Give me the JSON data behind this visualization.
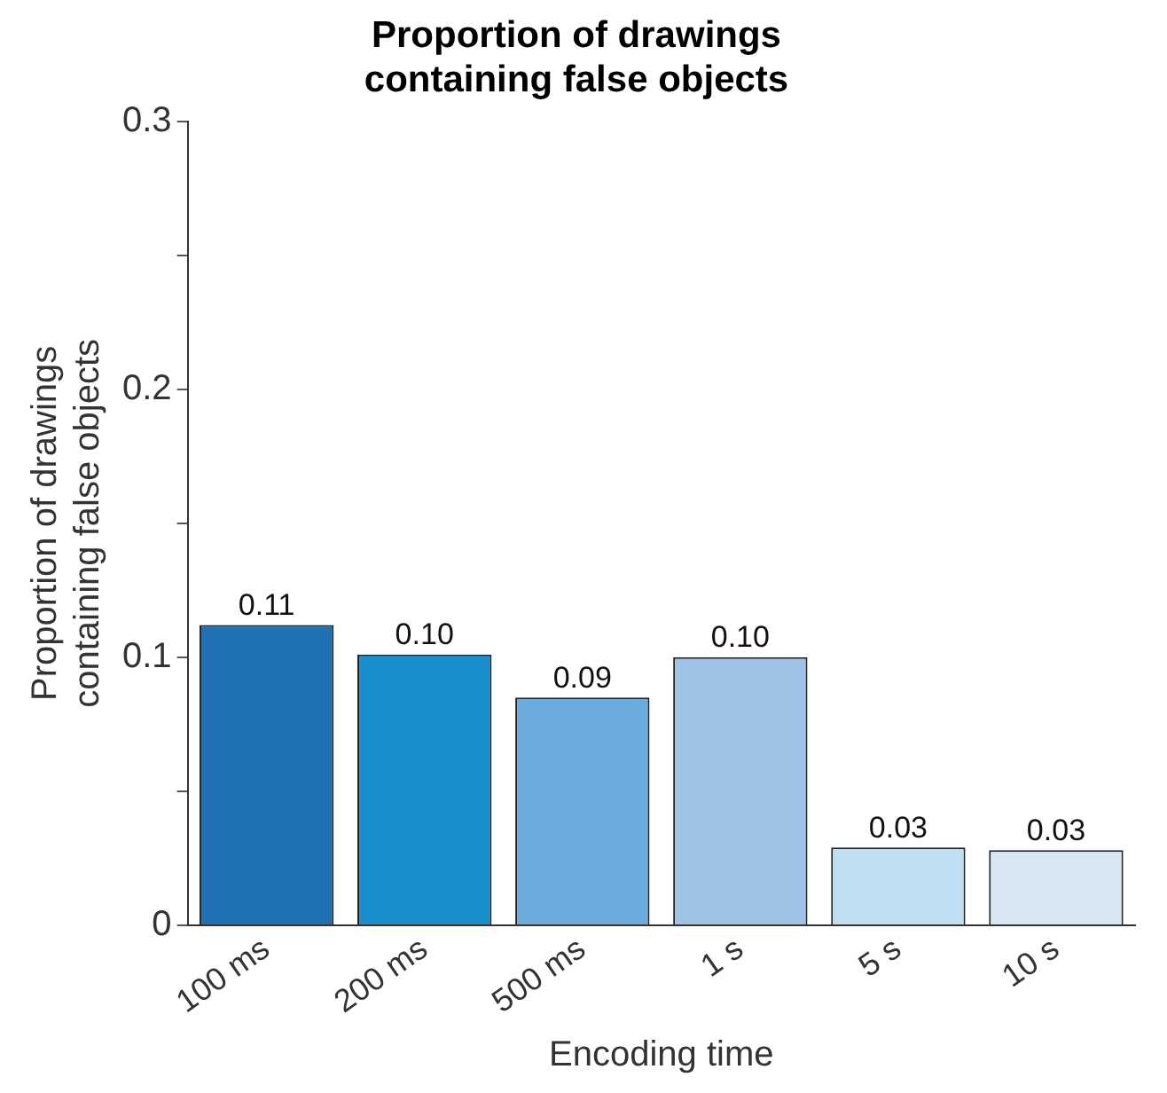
{
  "chart_data": {
    "type": "bar",
    "title": "Proportion of drawings containing false objects",
    "xlabel": "Encoding time",
    "ylabel": "Proportion of drawings containing false objects",
    "categories": [
      "100 ms",
      "200 ms",
      "500 ms",
      "1 s",
      "5 s",
      "10 s"
    ],
    "values": [
      0.112,
      0.101,
      0.085,
      0.1,
      0.029,
      0.028
    ],
    "value_labels": [
      "0.11",
      "0.10",
      "0.09",
      "0.10",
      "0.03",
      "0.03"
    ],
    "colors": [
      "#2070b4",
      "#1a8fd0",
      "#6aaadd",
      "#9ec3e6",
      "#bfe0f2",
      "#d6e6f2"
    ],
    "ylim": [
      0,
      0.3
    ],
    "yticks": [
      0,
      {
        "value": 0.05,
        "label": null
      },
      {
        "value": 0.1,
        "label": "0.1"
      },
      {
        "value": 0.15,
        "label": null
      },
      {
        "value": 0.2,
        "label": "0.2"
      },
      {
        "value": 0.25,
        "label": null
      },
      {
        "value": 0.3,
        "label": "0.3"
      }
    ],
    "grid": false,
    "legend": false
  }
}
